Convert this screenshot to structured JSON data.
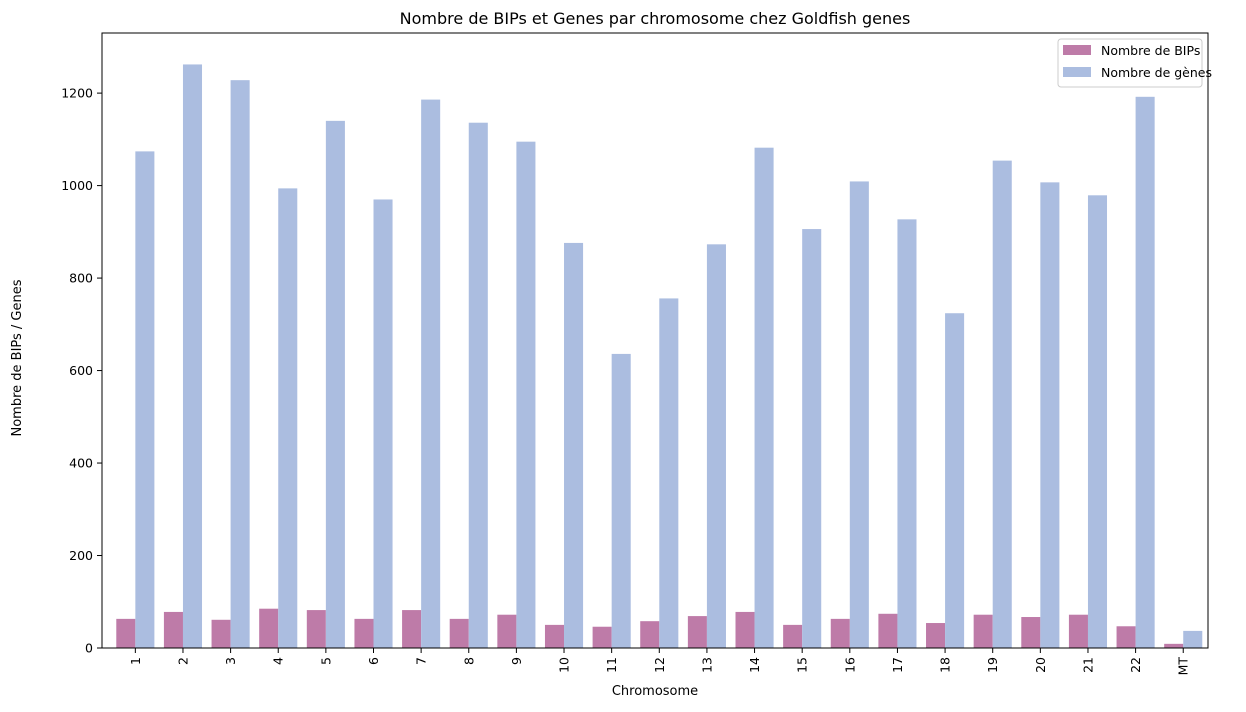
{
  "chart_data": {
    "type": "bar",
    "title": "Nombre de BIPs et Genes par chromosome chez Goldfish genes",
    "xlabel": "Chromosome",
    "ylabel": "Nombre de BIPs / Genes",
    "categories": [
      "1",
      "2",
      "3",
      "4",
      "5",
      "6",
      "7",
      "8",
      "9",
      "10",
      "11",
      "12",
      "13",
      "14",
      "15",
      "16",
      "17",
      "18",
      "19",
      "20",
      "21",
      "22",
      "MT"
    ],
    "ylim": [
      0,
      1330
    ],
    "yticks": [
      0,
      200,
      400,
      600,
      800,
      1000,
      1200
    ],
    "grid": false,
    "legend_position": "top-right",
    "series": [
      {
        "name": "Nombre de BIPs",
        "color": "#be7ba8",
        "values": [
          63,
          78,
          61,
          85,
          82,
          63,
          82,
          63,
          72,
          50,
          46,
          58,
          69,
          78,
          50,
          63,
          74,
          54,
          72,
          67,
          72,
          47,
          9
        ]
      },
      {
        "name": "Nombre de gènes",
        "color": "#abbde0",
        "values": [
          1074,
          1262,
          1228,
          994,
          1140,
          970,
          1186,
          1136,
          1095,
          876,
          636,
          756,
          873,
          1082,
          906,
          1009,
          927,
          724,
          1054,
          1007,
          979,
          1192,
          37
        ]
      }
    ]
  }
}
